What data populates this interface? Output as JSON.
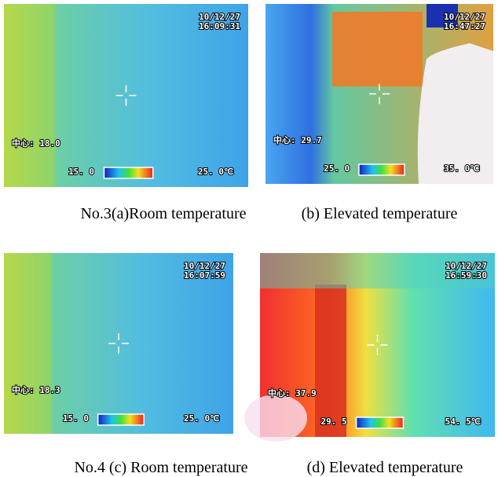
{
  "panels": [
    {
      "date": "10/12/27",
      "time": "16:09:31",
      "center": "中心: 18.0",
      "scale_min": "15. 0",
      "scale_max": "25. 0℃"
    },
    {
      "date": "10/12/27",
      "time": "16:47:27",
      "center": "中心: 29.7",
      "scale_min": "25. 0",
      "scale_max": "35. 0℃"
    },
    {
      "date": "10/12/27",
      "time": "16:07:59",
      "center": "中心: 18.3",
      "scale_min": "15. 0",
      "scale_max": "25. 0℃"
    },
    {
      "date": "10/12/27",
      "time": "16:59:30",
      "center": "中心: 37.9",
      "scale_min": "29. 5",
      "scale_max": "54. 5℃"
    }
  ],
  "captions": [
    [
      "No.3(a)Room temperature",
      "(b) Elevated temperature"
    ],
    [
      "No.4 (c) Room temperature",
      "(d) Elevated temperature"
    ]
  ]
}
